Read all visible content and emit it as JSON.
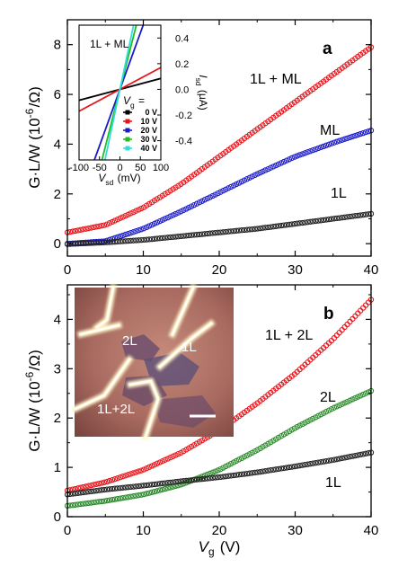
{
  "chart_data": [
    {
      "panel_label": "a",
      "type": "scatter",
      "xlabel": "V_g (V)",
      "ylabel": "G·L/W (10^-6/Ω)",
      "xlim": [
        0,
        40
      ],
      "ylim": [
        -0.5,
        9
      ],
      "xticks": [
        "0",
        "10",
        "20",
        "30",
        "40"
      ],
      "yticks": [
        "0",
        "2",
        "4",
        "6",
        "8"
      ],
      "series": [
        {
          "name": "1L + ML",
          "color": "#e8141a",
          "x": [
            0,
            5,
            10,
            15,
            20,
            25,
            30,
            35,
            40
          ],
          "values": [
            0.45,
            0.75,
            1.45,
            2.4,
            3.5,
            4.6,
            5.7,
            6.8,
            7.9
          ]
        },
        {
          "name": "ML",
          "color": "#1a1ac8",
          "x": [
            0,
            5,
            10,
            15,
            20,
            25,
            30,
            35,
            40
          ],
          "values": [
            0.0,
            0.1,
            0.6,
            1.3,
            2.05,
            2.8,
            3.5,
            4.05,
            4.55
          ]
        },
        {
          "name": "1L",
          "color": "#222222",
          "x": [
            0,
            5,
            10,
            15,
            20,
            25,
            30,
            35,
            40
          ],
          "values": [
            -0.02,
            0.05,
            0.15,
            0.3,
            0.45,
            0.6,
            0.8,
            1.0,
            1.2
          ]
        }
      ],
      "inset": {
        "title": "1L + ML",
        "type": "line",
        "xlabel": "V_sd (mV)",
        "ylabel": "I_sd (μA)",
        "xlim": [
          -100,
          100
        ],
        "ylim": [
          -0.55,
          0.5
        ],
        "xticks": [
          "-100",
          "-50",
          "0",
          "50",
          "100"
        ],
        "yticks": [
          "0.4",
          "0.2",
          "0.0",
          "-0.2",
          "-0.4"
        ],
        "legend_title": "V_g =",
        "series": [
          {
            "name": "0 V",
            "color": "#000000",
            "slope_uA_per_mV": 0.00085
          },
          {
            "name": "10 V",
            "color": "#e8141a",
            "slope_uA_per_mV": 0.0017
          },
          {
            "name": "20 V",
            "color": "#1a1ac8",
            "slope_uA_per_mV": 0.0088
          },
          {
            "name": "30 V",
            "color": "#22bb22",
            "slope_uA_per_mV": 0.0125
          },
          {
            "name": "40 V",
            "color": "#33dddd",
            "slope_uA_per_mV": 0.015
          }
        ]
      }
    },
    {
      "panel_label": "b",
      "type": "scatter",
      "xlabel": "V_g (V)",
      "ylabel": "G·L/W (10^-6/Ω)",
      "xlim": [
        0,
        40
      ],
      "ylim": [
        0,
        4.7
      ],
      "xticks": [
        "0",
        "10",
        "20",
        "30",
        "40"
      ],
      "yticks": [
        "0",
        "1",
        "2",
        "3",
        "4"
      ],
      "series": [
        {
          "name": "1L + 2L",
          "color": "#e8141a",
          "x": [
            0,
            5,
            10,
            15,
            20,
            25,
            30,
            35,
            40
          ],
          "values": [
            0.53,
            0.7,
            0.95,
            1.3,
            1.75,
            2.3,
            2.9,
            3.6,
            4.4
          ]
        },
        {
          "name": "2L",
          "color": "#2a8a2a",
          "x": [
            0,
            5,
            10,
            15,
            20,
            25,
            30,
            35,
            40
          ],
          "values": [
            0.22,
            0.32,
            0.45,
            0.65,
            0.95,
            1.35,
            1.8,
            2.2,
            2.55
          ]
        },
        {
          "name": "1L",
          "color": "#222222",
          "x": [
            0,
            5,
            10,
            15,
            20,
            25,
            30,
            35,
            40
          ],
          "values": [
            0.45,
            0.55,
            0.63,
            0.72,
            0.8,
            0.9,
            1.02,
            1.15,
            1.3
          ]
        }
      ],
      "photo_labels": [
        "2L",
        "1L",
        "1L+2L"
      ]
    }
  ]
}
